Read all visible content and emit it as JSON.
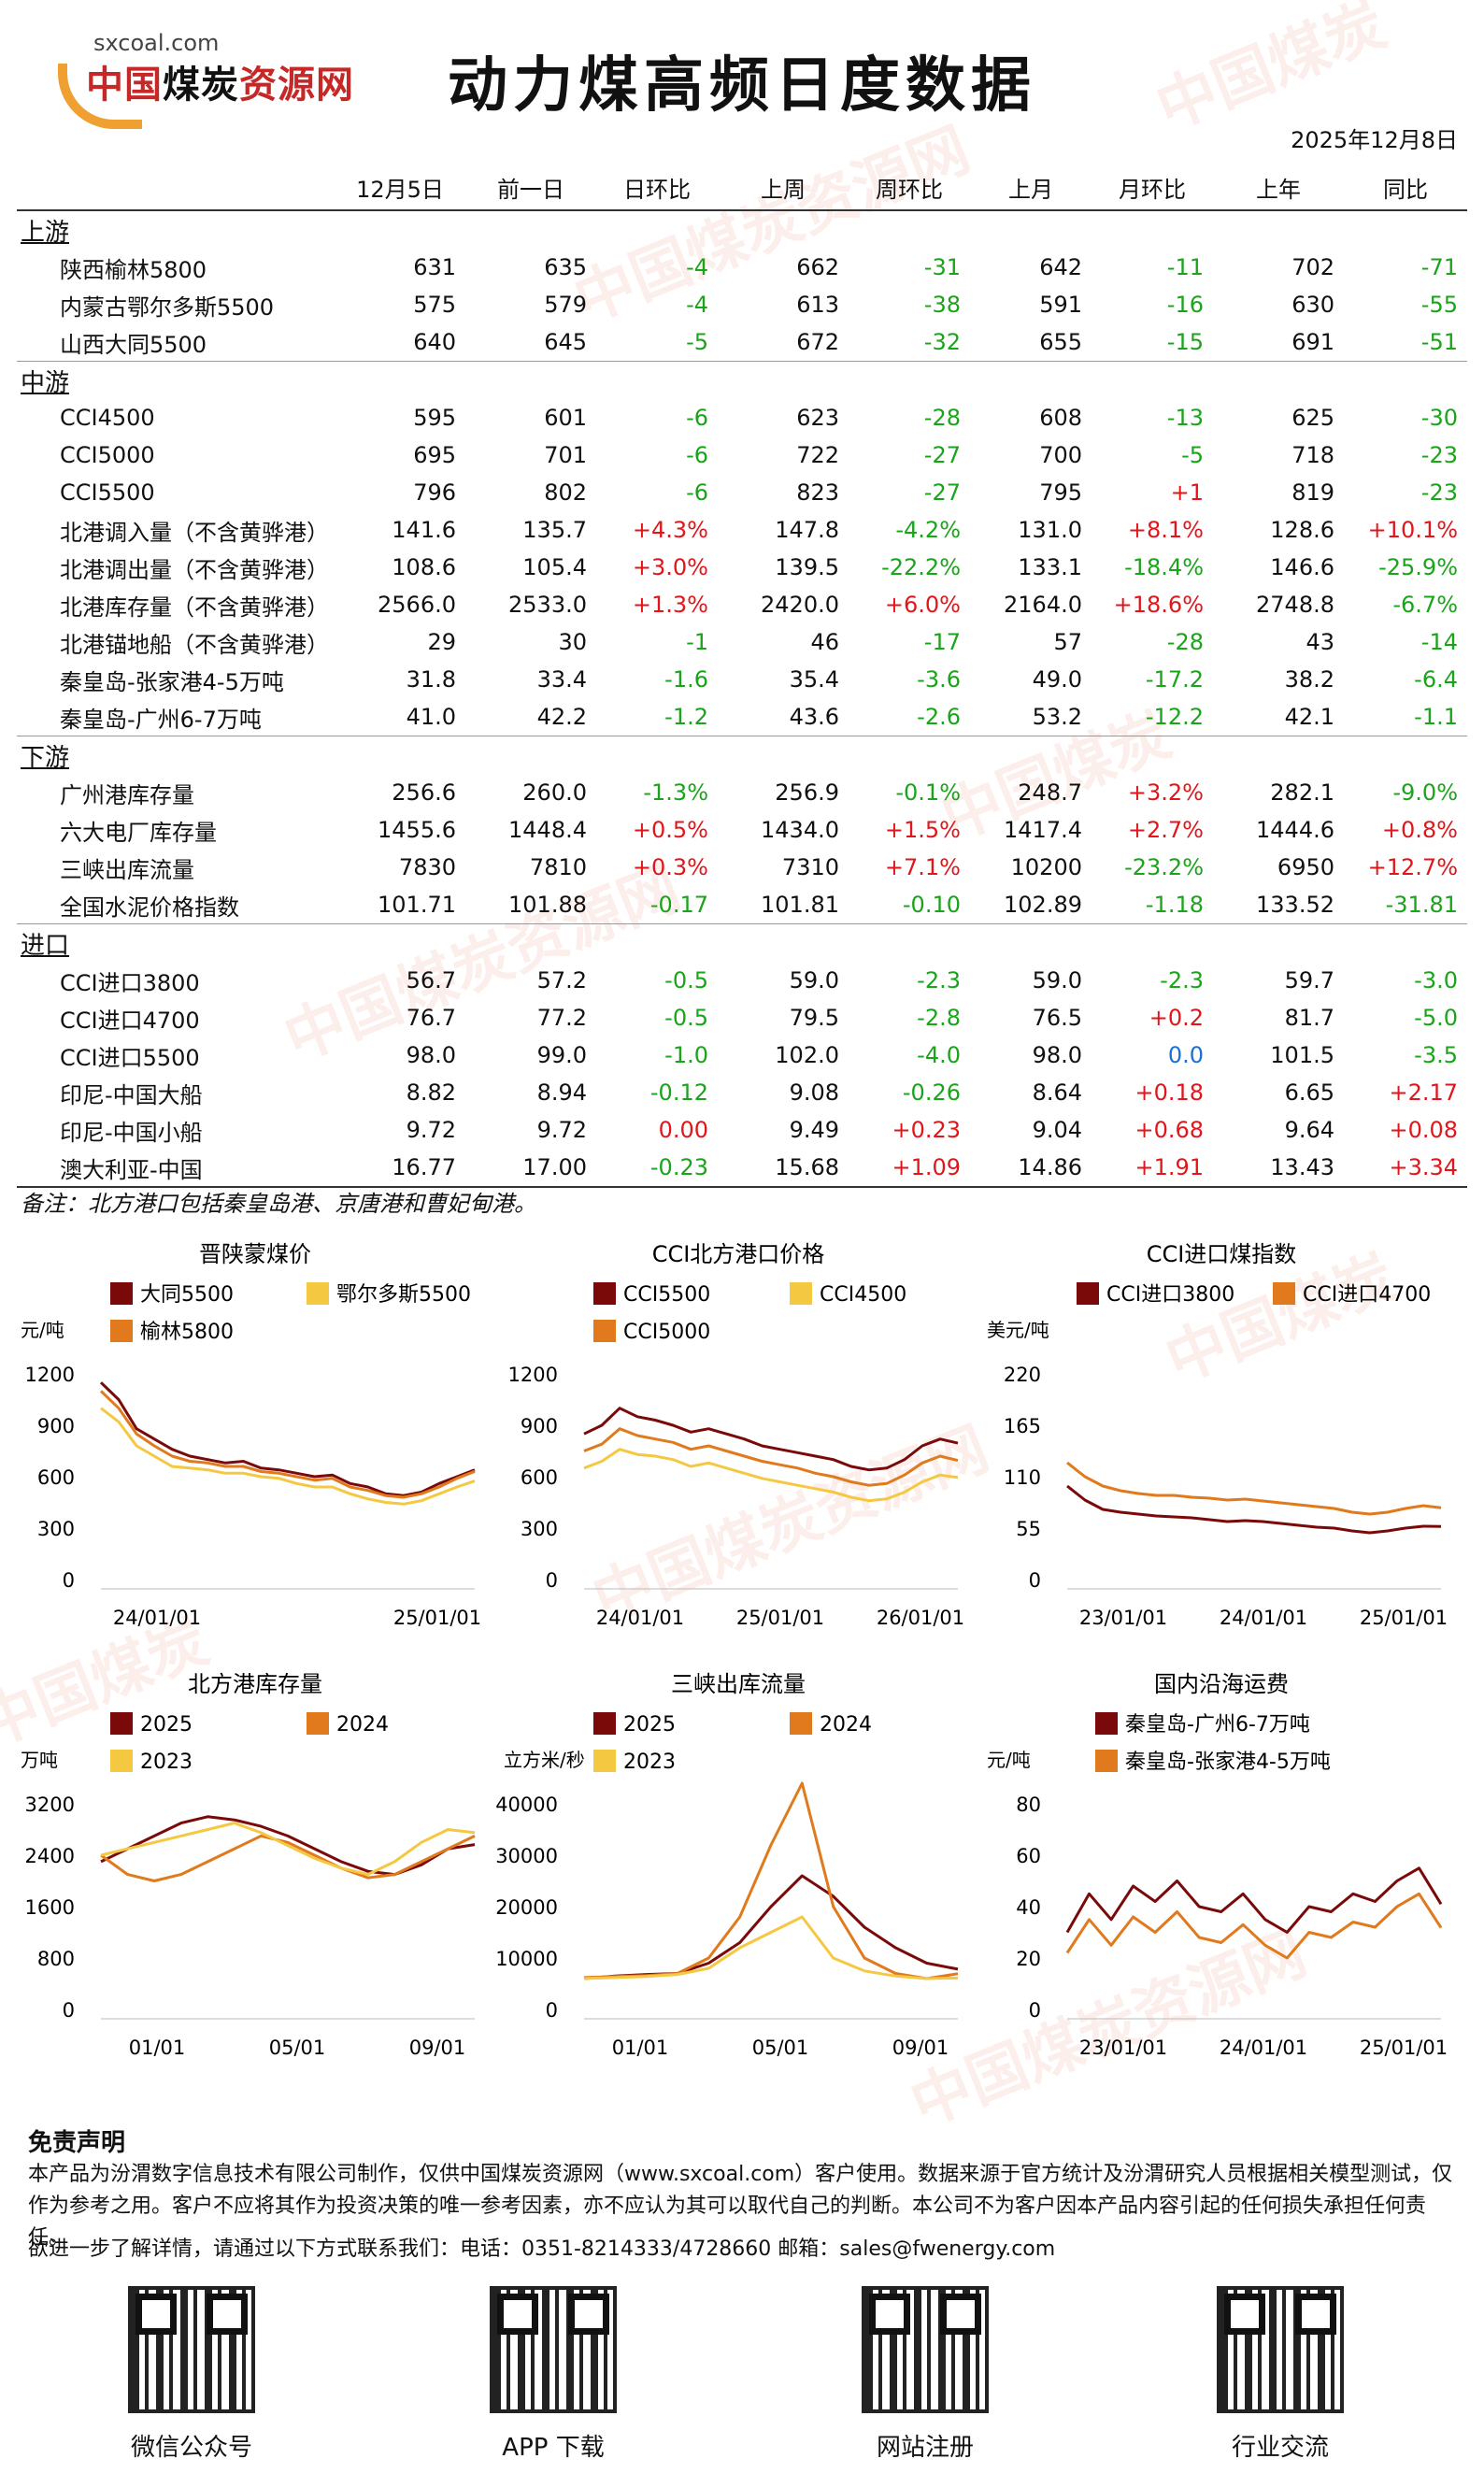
{
  "header": {
    "logo_url": "sxcoal.com",
    "logo_name_red": "中国",
    "logo_name_black": "煤炭",
    "logo_name_red2": "资源网",
    "title": "动力煤高频日度数据",
    "date": "2025年12月8日"
  },
  "columns": [
    "",
    "12月5日",
    "前一日",
    "日环比",
    "上周",
    "周环比",
    "上月",
    "月环比",
    "上年",
    "同比"
  ],
  "sections": [
    {
      "name": "上游",
      "rows": [
        [
          "陕西榆林5800",
          "631",
          "635",
          "-4",
          "662",
          "-31",
          "642",
          "-11",
          "702",
          "-71"
        ],
        [
          "内蒙古鄂尔多斯5500",
          "575",
          "579",
          "-4",
          "613",
          "-38",
          "591",
          "-16",
          "630",
          "-55"
        ],
        [
          "山西大同5500",
          "640",
          "645",
          "-5",
          "672",
          "-32",
          "655",
          "-15",
          "691",
          "-51"
        ]
      ]
    },
    {
      "name": "中游",
      "rows": [
        [
          "CCI4500",
          "595",
          "601",
          "-6",
          "623",
          "-28",
          "608",
          "-13",
          "625",
          "-30"
        ],
        [
          "CCI5000",
          "695",
          "701",
          "-6",
          "722",
          "-27",
          "700",
          "-5",
          "718",
          "-23"
        ],
        [
          "CCI5500",
          "796",
          "802",
          "-6",
          "823",
          "-27",
          "795",
          "+1",
          "819",
          "-23"
        ],
        [
          "北港调入量（不含黄骅港）",
          "141.6",
          "135.7",
          "+4.3%",
          "147.8",
          "-4.2%",
          "131.0",
          "+8.1%",
          "128.6",
          "+10.1%"
        ],
        [
          "北港调出量（不含黄骅港）",
          "108.6",
          "105.4",
          "+3.0%",
          "139.5",
          "-22.2%",
          "133.1",
          "-18.4%",
          "146.6",
          "-25.9%"
        ],
        [
          "北港库存量（不含黄骅港）",
          "2566.0",
          "2533.0",
          "+1.3%",
          "2420.0",
          "+6.0%",
          "2164.0",
          "+18.6%",
          "2748.8",
          "-6.7%"
        ],
        [
          "北港锚地船（不含黄骅港）",
          "29",
          "30",
          "-1",
          "46",
          "-17",
          "57",
          "-28",
          "43",
          "-14"
        ],
        [
          "秦皇岛-张家港4-5万吨",
          "31.8",
          "33.4",
          "-1.6",
          "35.4",
          "-3.6",
          "49.0",
          "-17.2",
          "38.2",
          "-6.4"
        ],
        [
          "秦皇岛-广州6-7万吨",
          "41.0",
          "42.2",
          "-1.2",
          "43.6",
          "-2.6",
          "53.2",
          "-12.2",
          "42.1",
          "-1.1"
        ]
      ]
    },
    {
      "name": "下游",
      "rows": [
        [
          "广州港库存量",
          "256.6",
          "260.0",
          "-1.3%",
          "256.9",
          "-0.1%",
          "248.7",
          "+3.2%",
          "282.1",
          "-9.0%"
        ],
        [
          "六大电厂库存量",
          "1455.6",
          "1448.4",
          "+0.5%",
          "1434.0",
          "+1.5%",
          "1417.4",
          "+2.7%",
          "1444.6",
          "+0.8%"
        ],
        [
          "三峡出库流量",
          "7830",
          "7810",
          "+0.3%",
          "7310",
          "+7.1%",
          "10200",
          "-23.2%",
          "6950",
          "+12.7%"
        ],
        [
          "全国水泥价格指数",
          "101.71",
          "101.88",
          "-0.17",
          "101.81",
          "-0.10",
          "102.89",
          "-1.18",
          "133.52",
          "-31.81"
        ]
      ]
    },
    {
      "name": "进口",
      "rows": [
        [
          "CCI进口3800",
          "56.7",
          "57.2",
          "-0.5",
          "59.0",
          "-2.3",
          "59.0",
          "-2.3",
          "59.7",
          "-3.0"
        ],
        [
          "CCI进口4700",
          "76.7",
          "77.2",
          "-0.5",
          "79.5",
          "-2.8",
          "76.5",
          "+0.2",
          "81.7",
          "-5.0"
        ],
        [
          "CCI进口5500",
          "98.0",
          "99.0",
          "-1.0",
          "102.0",
          "-4.0",
          "98.0",
          "0.0",
          "101.5",
          "-3.5"
        ],
        [
          "印尼-中国大船",
          "8.82",
          "8.94",
          "-0.12",
          "9.08",
          "-0.26",
          "8.64",
          "+0.18",
          "6.65",
          "+2.17"
        ],
        [
          "印尼-中国小船",
          "9.72",
          "9.72",
          "0.00",
          "9.49",
          "+0.23",
          "9.04",
          "+0.68",
          "9.64",
          "+0.08"
        ],
        [
          "澳大利亚-中国",
          "16.77",
          "17.00",
          "-0.23",
          "15.68",
          "+1.09",
          "14.86",
          "+1.91",
          "13.43",
          "+3.34"
        ]
      ]
    }
  ],
  "note": "备注：北方港口包括秦皇岛港、京唐港和曹妃甸港。",
  "colors": {
    "dark": "#7a0a0a",
    "orange": "#e07a1c",
    "yellow": "#f5c842",
    "up": "#e0161b",
    "down": "#1aa41a",
    "flat": "#1b6fd6"
  },
  "chart_data": [
    {
      "type": "line",
      "title": "晋陕蒙煤价",
      "ylabel": "元/吨",
      "yticks": [
        "1200",
        "900",
        "600",
        "300",
        "0"
      ],
      "ylim": [
        0,
        1200
      ],
      "xticks": [
        "24/01/01",
        "25/01/01"
      ],
      "series": [
        {
          "name": "大同5500",
          "color": "#7a0a0a",
          "values": [
            1150,
            1050,
            880,
            820,
            760,
            720,
            700,
            680,
            690,
            650,
            640,
            620,
            600,
            610,
            560,
            540,
            500,
            490,
            510,
            560,
            600,
            640
          ]
        },
        {
          "name": "鄂尔多斯5500",
          "color": "#f5c842",
          "values": [
            1000,
            920,
            780,
            720,
            660,
            650,
            640,
            620,
            620,
            600,
            590,
            560,
            540,
            540,
            500,
            470,
            450,
            440,
            460,
            500,
            540,
            575
          ]
        },
        {
          "name": "榆林5800",
          "color": "#e07a1c",
          "values": [
            1100,
            1000,
            850,
            780,
            720,
            690,
            680,
            660,
            660,
            630,
            620,
            600,
            580,
            590,
            540,
            520,
            490,
            480,
            500,
            540,
            590,
            631
          ]
        }
      ]
    },
    {
      "type": "line",
      "title": "CCI北方港口价格",
      "ylabel": "",
      "yticks": [
        "1200",
        "900",
        "600",
        "300",
        "0"
      ],
      "ylim": [
        0,
        1200
      ],
      "xticks": [
        "24/01/01",
        "25/01/01",
        "26/01/01"
      ],
      "series": [
        {
          "name": "CCI5500",
          "color": "#7a0a0a",
          "values": [
            850,
            900,
            1000,
            950,
            930,
            900,
            860,
            880,
            850,
            820,
            780,
            760,
            740,
            720,
            700,
            660,
            640,
            650,
            700,
            780,
            820,
            796
          ]
        },
        {
          "name": "CCI4500",
          "color": "#f5c842",
          "values": [
            650,
            690,
            760,
            730,
            720,
            700,
            660,
            680,
            650,
            620,
            590,
            570,
            550,
            530,
            510,
            480,
            460,
            470,
            510,
            570,
            610,
            595
          ]
        },
        {
          "name": "CCI5000",
          "color": "#e07a1c",
          "values": [
            750,
            790,
            880,
            840,
            820,
            800,
            760,
            780,
            750,
            720,
            690,
            670,
            650,
            620,
            600,
            570,
            550,
            560,
            610,
            680,
            720,
            695
          ]
        }
      ]
    },
    {
      "type": "line",
      "title": "CCI进口煤指数",
      "ylabel": "美元/吨",
      "yticks": [
        "220",
        "165",
        "110",
        "55",
        "0"
      ],
      "ylim": [
        0,
        220
      ],
      "xticks": [
        "23/01/01",
        "24/01/01",
        "25/01/01"
      ],
      "series": [
        {
          "name": "CCI进口3800",
          "color": "#7a0a0a",
          "values": [
            100,
            85,
            75,
            72,
            70,
            68,
            67,
            66,
            64,
            62,
            63,
            62,
            60,
            58,
            56,
            55,
            52,
            50,
            52,
            55,
            57,
            56.7
          ]
        },
        {
          "name": "CCI进口4700",
          "color": "#e07a1c",
          "values": [
            125,
            110,
            100,
            95,
            92,
            90,
            90,
            88,
            87,
            85,
            86,
            84,
            82,
            80,
            78,
            76,
            72,
            70,
            72,
            76,
            79,
            76.7
          ]
        }
      ]
    },
    {
      "type": "line",
      "title": "北方港库存量",
      "ylabel": "万吨",
      "yticks": [
        "3200",
        "2400",
        "1600",
        "800",
        "0"
      ],
      "ylim": [
        0,
        3200
      ],
      "xticks": [
        "01/01",
        "05/01",
        "09/01"
      ],
      "series": [
        {
          "name": "2025",
          "color": "#7a0a0a",
          "values": [
            2300,
            2500,
            2700,
            2900,
            3000,
            2950,
            2850,
            2700,
            2500,
            2300,
            2150,
            2100,
            2250,
            2500,
            2566
          ]
        },
        {
          "name": "2024",
          "color": "#e07a1c",
          "values": [
            2400,
            2100,
            2000,
            2100,
            2300,
            2500,
            2700,
            2600,
            2400,
            2200,
            2050,
            2100,
            2300,
            2500,
            2700
          ]
        },
        {
          "name": "2023",
          "color": "#f5c842",
          "values": [
            2400,
            2500,
            2600,
            2700,
            2800,
            2900,
            2750,
            2550,
            2350,
            2200,
            2100,
            2300,
            2600,
            2800,
            2750
          ]
        }
      ]
    },
    {
      "type": "line",
      "title": "三峡出库流量",
      "ylabel": "立方米/秒",
      "yticks": [
        "40000",
        "30000",
        "20000",
        "10000",
        "0"
      ],
      "ylim": [
        0,
        40000
      ],
      "xticks": [
        "01/01",
        "05/01",
        "09/01"
      ],
      "series": [
        {
          "name": "2025",
          "color": "#7a0a0a",
          "values": [
            6000,
            6500,
            6800,
            7000,
            9000,
            13000,
            20000,
            26000,
            22000,
            16000,
            12000,
            9000,
            7830
          ]
        },
        {
          "name": "2024",
          "color": "#e07a1c",
          "values": [
            6200,
            6400,
            6600,
            7000,
            10000,
            18000,
            32000,
            44000,
            20000,
            10000,
            7000,
            6000,
            6950
          ]
        },
        {
          "name": "2023",
          "color": "#f5c842",
          "values": [
            6000,
            6200,
            6400,
            6800,
            8000,
            12000,
            15000,
            18000,
            10000,
            7500,
            6500,
            6000,
            6100
          ]
        }
      ]
    },
    {
      "type": "line",
      "title": "国内沿海运费",
      "ylabel": "元/吨",
      "yticks": [
        "80",
        "60",
        "40",
        "20",
        "0"
      ],
      "ylim": [
        0,
        80
      ],
      "xticks": [
        "23/01/01",
        "24/01/01",
        "25/01/01"
      ],
      "series": [
        {
          "name": "秦皇岛-广州6-7万吨",
          "color": "#7a0a0a",
          "values": [
            30,
            45,
            35,
            48,
            42,
            50,
            40,
            38,
            45,
            35,
            30,
            40,
            38,
            45,
            42,
            50,
            55,
            41
          ]
        },
        {
          "name": "秦皇岛-张家港4-5万吨",
          "color": "#e07a1c",
          "values": [
            22,
            35,
            25,
            36,
            30,
            38,
            28,
            26,
            33,
            25,
            20,
            30,
            28,
            34,
            32,
            40,
            45,
            31.8
          ]
        }
      ]
    }
  ],
  "disclaimer": {
    "heading": "免责声明",
    "text": "本产品为汾渭数字信息技术有限公司制作，仅供中国煤炭资源网（www.sxcoal.com）客户使用。数据来源于官方统计及汾渭研究人员根据相关模型测试，仅作为参考之用。客户不应将其作为投资决策的唯一参考因素，亦不应认为其可以取代自己的判断。本公司不为客户因本产品内容引起的任何损失承担任何责任。",
    "contact": "欲进一步了解详情，请通过以下方式联系我们：电话：0351-8214333/4728660 邮箱：sales@fwenergy.com"
  },
  "qrcodes": [
    {
      "label": "微信公众号"
    },
    {
      "label": "APP 下载"
    },
    {
      "label": "网站注册"
    },
    {
      "label": "行业交流"
    }
  ]
}
